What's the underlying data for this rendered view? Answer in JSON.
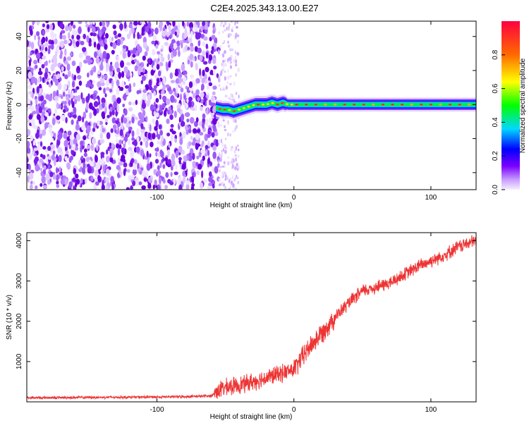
{
  "title": "C2E4.2025.343.13.00.E27",
  "chart_data": [
    {
      "type": "heatmap",
      "xlabel": "Height of straight line (km)",
      "ylabel": "Frequency (Hz)",
      "xlim": [
        -195,
        133
      ],
      "ylim": [
        -50,
        49
      ],
      "xticks": [
        -100,
        0,
        100
      ],
      "yticks": [
        -40,
        -20,
        0,
        20,
        40
      ],
      "noise_region_x": [
        -195,
        -55
      ],
      "sparse_region_x": [
        -55,
        -40
      ],
      "signal_ridge": {
        "x": [
          -57,
          -52,
          -48,
          -44,
          -40,
          -36,
          -32,
          -28,
          -24,
          -20,
          -16,
          -12,
          -8,
          -4,
          0,
          20,
          60,
          100,
          133
        ],
        "y": [
          -2,
          -3,
          -3,
          -4,
          -3,
          -2,
          -1,
          0,
          0,
          0,
          1,
          0,
          1,
          0,
          0,
          0,
          0,
          0,
          0
        ]
      },
      "grid": false,
      "colorbar": {
        "label": "Normalized spectral amplitude",
        "ticks": [
          "0.0",
          "0.2",
          "0.4",
          "0.6",
          "0.8"
        ],
        "range": [
          0,
          1
        ],
        "colormap": [
          "#f6efff",
          "#7a00ff",
          "#0000ff",
          "#00d7ff",
          "#00ff00",
          "#ffff00",
          "#ff6a00",
          "#ff0040"
        ]
      }
    },
    {
      "type": "line",
      "xlabel": "Height of straight line (km)",
      "ylabel": "SNR (10 * v/v)",
      "xlim": [
        -195,
        133
      ],
      "ylim": [
        0,
        4200
      ],
      "xticks": [
        -100,
        0,
        100
      ],
      "yticks": [
        1000,
        2000,
        3000,
        4000
      ],
      "grid": false,
      "series": [
        {
          "color": "#ee3333",
          "x": [
            -195,
            -150,
            -100,
            -80,
            -60,
            -55,
            -50,
            -40,
            -30,
            -20,
            -10,
            0,
            5,
            10,
            20,
            30,
            40,
            50,
            60,
            70,
            80,
            90,
            100,
            110,
            120,
            133
          ],
          "y": [
            100,
            110,
            120,
            130,
            150,
            300,
            350,
            420,
            500,
            600,
            700,
            800,
            1050,
            1300,
            1700,
            2100,
            2450,
            2750,
            2850,
            2950,
            3150,
            3350,
            3500,
            3650,
            3850,
            4000
          ]
        }
      ]
    }
  ]
}
